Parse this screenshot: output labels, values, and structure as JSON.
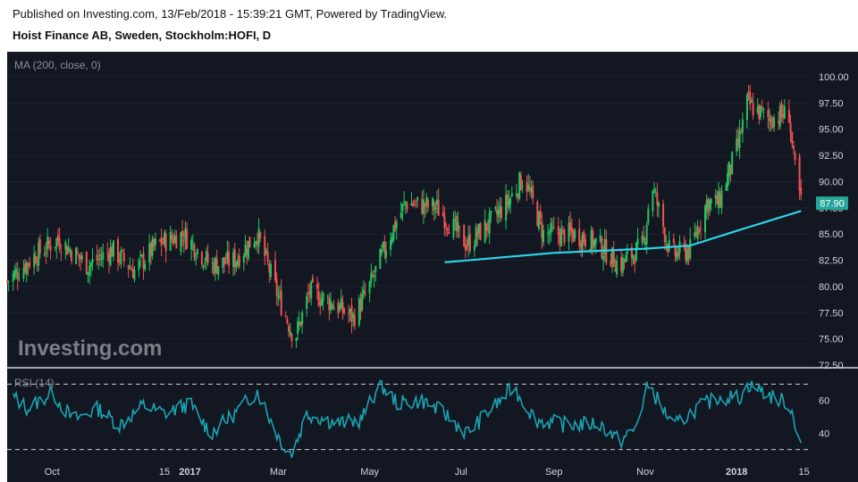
{
  "header": {
    "line1": "Published on Investing.com, 13/Feb/2018 - 15:39:21 GMT, Powered by TradingView.",
    "line2": "Hoist Finance AB, Sweden, Stockholm:HOFI, D"
  },
  "colors": {
    "background": "#131722",
    "up": "#26a69a",
    "up_candle": "#22c55e",
    "down_candle": "#ef5350",
    "ma_line": "#2dd3e8",
    "rsi_line": "#1aa3b0",
    "price_badge": "#26a69a"
  },
  "chart_data": [
    {
      "type": "candlestick",
      "indicator_label": "MA (200, close, 0)",
      "watermark": "Investing.com",
      "last_price_label": "87.90",
      "last_price": 87.9,
      "ylim": [
        72.5,
        100.0
      ],
      "y_ticks": [
        "100.00",
        "97.50",
        "95.00",
        "92.50",
        "90.00",
        "87.50",
        "85.00",
        "82.50",
        "80.00",
        "77.50",
        "75.00",
        "72.50"
      ],
      "x_tick_labels": [
        "Oct",
        "15",
        "2017",
        "Mar",
        "May",
        "Jul",
        "Sep",
        "Nov",
        "2018",
        "15"
      ],
      "x_tick_dates": [
        "2016-10-01",
        "2016-12-15",
        "2017-01-01",
        "2017-03-01",
        "2017-05-01",
        "2017-07-01",
        "2017-09-01",
        "2017-11-01",
        "2018-01-01",
        "2018-02-15"
      ],
      "x_range": [
        "2016-09-01",
        "2018-02-20"
      ],
      "close_anchors": [
        [
          "2016-09-01",
          80.5
        ],
        [
          "2016-09-20",
          83.0
        ],
        [
          "2016-10-05",
          84.5
        ],
        [
          "2016-10-25",
          82.0
        ],
        [
          "2016-11-10",
          83.5
        ],
        [
          "2016-11-25",
          81.5
        ],
        [
          "2016-12-10",
          84.0
        ],
        [
          "2016-12-28",
          85.0
        ],
        [
          "2017-01-15",
          82.0
        ],
        [
          "2017-01-31",
          82.5
        ],
        [
          "2017-02-15",
          85.0
        ],
        [
          "2017-03-01",
          79.0
        ],
        [
          "2017-03-12",
          75.0
        ],
        [
          "2017-03-22",
          79.5
        ],
        [
          "2017-04-05",
          78.5
        ],
        [
          "2017-04-20",
          77.0
        ],
        [
          "2017-05-01",
          80.0
        ],
        [
          "2017-05-15",
          85.0
        ],
        [
          "2017-05-25",
          88.0
        ],
        [
          "2017-06-15",
          87.5
        ],
        [
          "2017-07-05",
          84.0
        ],
        [
          "2017-07-20",
          86.0
        ],
        [
          "2017-08-01",
          88.0
        ],
        [
          "2017-08-12",
          90.5
        ],
        [
          "2017-08-25",
          85.0
        ],
        [
          "2017-09-15",
          85.0
        ],
        [
          "2017-10-01",
          84.0
        ],
        [
          "2017-10-15",
          82.0
        ],
        [
          "2017-10-31",
          84.0
        ],
        [
          "2017-11-05",
          90.0
        ],
        [
          "2017-11-18",
          83.0
        ],
        [
          "2017-12-01",
          83.5
        ],
        [
          "2017-12-12",
          88.0
        ],
        [
          "2017-12-20",
          88.0
        ],
        [
          "2018-01-02",
          93.5
        ],
        [
          "2018-01-08",
          97.5
        ],
        [
          "2018-01-22",
          96.0
        ],
        [
          "2018-02-05",
          96.5
        ],
        [
          "2018-02-08",
          92.0
        ],
        [
          "2018-02-13",
          87.9
        ]
      ],
      "ma200_anchors": [
        [
          "2017-06-20",
          82.3
        ],
        [
          "2017-09-01",
          83.2
        ],
        [
          "2017-11-01",
          83.6
        ],
        [
          "2017-12-01",
          83.9
        ],
        [
          "2018-01-01",
          85.3
        ],
        [
          "2018-02-13",
          87.2
        ]
      ]
    },
    {
      "type": "line",
      "indicator_label": "RSI (14)",
      "ylim": [
        20,
        80
      ],
      "y_ticks": [
        "60",
        "40"
      ],
      "levels": [
        70,
        30
      ],
      "rsi_anchors": [
        [
          "2016-09-05",
          62
        ],
        [
          "2016-09-15",
          55
        ],
        [
          "2016-10-01",
          65
        ],
        [
          "2016-10-15",
          48
        ],
        [
          "2016-11-01",
          55
        ],
        [
          "2016-11-15",
          45
        ],
        [
          "2016-12-01",
          57
        ],
        [
          "2016-12-15",
          52
        ],
        [
          "2017-01-01",
          58
        ],
        [
          "2017-01-15",
          40
        ],
        [
          "2017-01-31",
          52
        ],
        [
          "2017-02-15",
          66
        ],
        [
          "2017-03-01",
          38
        ],
        [
          "2017-03-10",
          27
        ],
        [
          "2017-03-20",
          52
        ],
        [
          "2017-04-10",
          46
        ],
        [
          "2017-04-25",
          48
        ],
        [
          "2017-05-08",
          70
        ],
        [
          "2017-05-20",
          58
        ],
        [
          "2017-06-05",
          60
        ],
        [
          "2017-06-20",
          52
        ],
        [
          "2017-07-05",
          40
        ],
        [
          "2017-07-25",
          58
        ],
        [
          "2017-08-05",
          68
        ],
        [
          "2017-08-20",
          48
        ],
        [
          "2017-09-10",
          45
        ],
        [
          "2017-10-01",
          46
        ],
        [
          "2017-10-15",
          35
        ],
        [
          "2017-10-25",
          42
        ],
        [
          "2017-11-03",
          70
        ],
        [
          "2017-11-20",
          44
        ],
        [
          "2017-12-05",
          55
        ],
        [
          "2017-12-20",
          62
        ],
        [
          "2018-01-03",
          62
        ],
        [
          "2018-01-10",
          70
        ],
        [
          "2018-01-25",
          62
        ],
        [
          "2018-02-05",
          58
        ],
        [
          "2018-02-13",
          35
        ]
      ]
    }
  ]
}
